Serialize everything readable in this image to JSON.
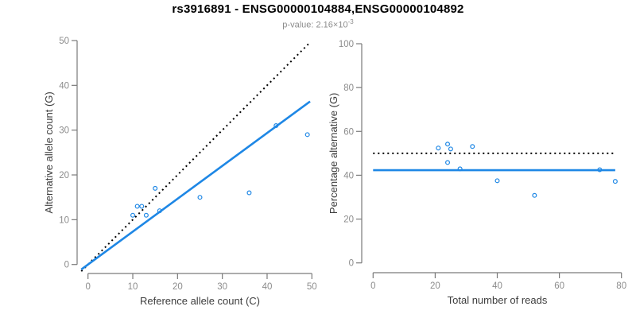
{
  "header": {
    "title": "rs3916891 - ENSG00000104884,ENSG00000104892",
    "subtitle_prefix": "p-value: 2.16×10",
    "subtitle_exponent": "-3"
  },
  "colors": {
    "accent_blue": "#1E87E5",
    "dotted_black": "#000000",
    "axis_line_gray": "#7a7a7a",
    "tick_label_gray": "#8c8c8c",
    "axis_title_dark": "#3d3d3d",
    "subtitle_gray": "#8c8c8c"
  },
  "chart_data": [
    {
      "name": "allele-counts-panel",
      "type": "scatter",
      "xlabel": "Reference allele count (C)",
      "ylabel": "Alternative allele count (G)",
      "xlim": [
        0,
        50
      ],
      "ylim": [
        0,
        50
      ],
      "xticks": [
        0,
        10,
        20,
        30,
        40,
        50
      ],
      "yticks": [
        0,
        10,
        20,
        30,
        40,
        50
      ],
      "grid": false,
      "legend": "none",
      "points": [
        [
          10,
          11
        ],
        [
          11,
          13
        ],
        [
          12,
          13
        ],
        [
          13,
          11
        ],
        [
          15,
          17
        ],
        [
          16,
          12
        ],
        [
          25,
          15
        ],
        [
          36,
          16
        ],
        [
          42,
          31
        ],
        [
          49,
          29
        ]
      ],
      "lines": [
        {
          "name": "identity-line",
          "style": "dotted",
          "color_key": "dotted_black",
          "from": [
            -1.5,
            -1.5
          ],
          "to": [
            49.4,
            49.4
          ],
          "width": 2
        },
        {
          "name": "fit-line",
          "style": "solid",
          "color_key": "accent_blue",
          "from": [
            -1.5,
            -1.1
          ],
          "to": [
            49.6,
            36.4
          ],
          "width": 2.6
        }
      ]
    },
    {
      "name": "percentage-panel",
      "type": "scatter",
      "xlabel": "Total number of reads",
      "ylabel": "Percentage alternative (G)",
      "xlim": [
        0,
        80
      ],
      "ylim": [
        0,
        100
      ],
      "xticks": [
        0,
        20,
        40,
        60,
        80
      ],
      "yticks": [
        0,
        20,
        40,
        60,
        80,
        100
      ],
      "grid": false,
      "legend": "none",
      "points": [
        [
          21,
          52.4
        ],
        [
          24,
          54.2
        ],
        [
          25,
          52.0
        ],
        [
          24,
          45.8
        ],
        [
          32,
          53.1
        ],
        [
          28,
          42.9
        ],
        [
          40,
          37.5
        ],
        [
          52,
          30.8
        ],
        [
          73,
          42.5
        ],
        [
          78,
          37.2
        ]
      ],
      "lines": [
        {
          "name": "expected-50pct-line",
          "style": "dotted",
          "color_key": "dotted_black",
          "from": [
            0,
            50
          ],
          "to": [
            78,
            50
          ],
          "width": 2
        },
        {
          "name": "observed-pct-line",
          "style": "solid",
          "color_key": "accent_blue",
          "from": [
            0,
            42.3
          ],
          "to": [
            78,
            42.3
          ],
          "width": 2.6
        }
      ]
    }
  ]
}
